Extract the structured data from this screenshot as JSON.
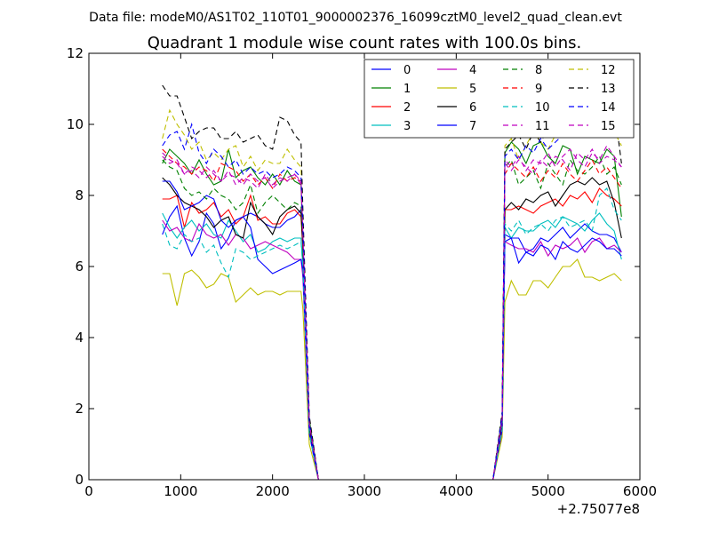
{
  "chart_data": {
    "type": "line",
    "suptitle": "Data file: modeM0/AS1T02_110T01_9000002376_16099cztM0_level2_quad_clean.evt",
    "title": "Quadrant 1 module wise count rates with 100.0s bins.",
    "xlabel": "",
    "ylabel": "",
    "x_offset_label": "+2.75077e8",
    "xlim": [
      0,
      6000
    ],
    "ylim": [
      0,
      12
    ],
    "x_ticks": [
      0,
      1000,
      2000,
      3000,
      4000,
      5000,
      6000
    ],
    "y_ticks": [
      0,
      2,
      4,
      6,
      8,
      10,
      12
    ],
    "grid": false,
    "legend_position": "top-right",
    "legend_columns": 4,
    "x": [
      800,
      880,
      960,
      1040,
      1120,
      1200,
      1280,
      1360,
      1440,
      1520,
      1600,
      1680,
      1760,
      1840,
      1920,
      2000,
      2080,
      2160,
      2240,
      2310,
      2330,
      2400,
      2500,
      4400,
      4500,
      4530,
      4600,
      4680,
      4760,
      4840,
      4920,
      5000,
      5080,
      5160,
      5240,
      5320,
      5400,
      5480,
      5560,
      5640,
      5720,
      5800
    ],
    "series": [
      {
        "name": "0",
        "color": "#0000ff",
        "style": "solid",
        "values": [
          6.9,
          7.4,
          7.7,
          6.8,
          6.3,
          6.7,
          7.5,
          7.2,
          6.5,
          6.8,
          7.3,
          7.4,
          7.5,
          7.4,
          7.2,
          7.1,
          7.1,
          7.3,
          7.4,
          7.6,
          6.6,
          1.5,
          0,
          0,
          1.6,
          6.9,
          6.8,
          6.8,
          6.4,
          6.5,
          6.8,
          6.7,
          6.9,
          7.1,
          6.8,
          7.0,
          7.2,
          7.0,
          6.9,
          6.9,
          6.8,
          6.4
        ]
      },
      {
        "name": "1",
        "color": "#008000",
        "style": "solid",
        "values": [
          8.9,
          9.3,
          9.1,
          8.9,
          8.6,
          9.0,
          8.6,
          8.3,
          8.4,
          9.3,
          8.5,
          8.7,
          8.8,
          8.5,
          8.3,
          8.6,
          8.3,
          8.7,
          8.4,
          8.3,
          6.6,
          1.7,
          0,
          0,
          1.8,
          9.2,
          9.5,
          9.3,
          8.9,
          9.4,
          9.5,
          9.1,
          8.9,
          9.4,
          9.3,
          8.6,
          9.1,
          9.0,
          8.9,
          9.3,
          9.1,
          7.4
        ]
      },
      {
        "name": "2",
        "color": "#ff0000",
        "style": "solid",
        "values": [
          7.9,
          7.9,
          8.0,
          7.1,
          7.8,
          7.5,
          7.6,
          7.8,
          7.4,
          7.6,
          7.2,
          7.4,
          8.0,
          7.3,
          7.4,
          7.2,
          7.2,
          7.5,
          7.6,
          7.4,
          6.5,
          1.4,
          0,
          0,
          1.5,
          7.6,
          7.6,
          7.7,
          7.6,
          7.5,
          7.7,
          7.8,
          7.9,
          7.7,
          8.0,
          7.9,
          8.1,
          7.8,
          8.2,
          8.0,
          7.9,
          7.7
        ]
      },
      {
        "name": "3",
        "color": "#00bfbf",
        "style": "solid",
        "values": [
          7.5,
          7.1,
          6.8,
          7.1,
          7.3,
          7.0,
          7.2,
          6.9,
          6.8,
          7.3,
          7.0,
          6.7,
          6.9,
          6.4,
          6.5,
          6.7,
          6.8,
          6.7,
          6.8,
          6.8,
          6.0,
          1.3,
          0,
          0,
          1.4,
          7.1,
          6.8,
          7.1,
          7.0,
          7.0,
          7.2,
          7.3,
          7.1,
          7.4,
          7.3,
          7.2,
          7.0,
          7.3,
          7.5,
          7.2,
          7.0,
          6.2
        ]
      },
      {
        "name": "4",
        "color": "#bf00bf",
        "style": "solid",
        "values": [
          7.3,
          7.0,
          7.1,
          6.8,
          6.7,
          7.2,
          6.9,
          6.8,
          6.9,
          6.6,
          6.9,
          6.8,
          6.5,
          6.6,
          6.7,
          6.6,
          6.5,
          6.4,
          6.2,
          6.2,
          5.7,
          1.3,
          0,
          0,
          1.3,
          6.7,
          6.6,
          6.5,
          6.5,
          6.4,
          6.7,
          6.3,
          6.6,
          6.5,
          6.6,
          6.8,
          6.4,
          6.7,
          6.8,
          6.5,
          6.6,
          6.4
        ]
      },
      {
        "name": "5",
        "color": "#bfbf00",
        "style": "solid",
        "values": [
          5.8,
          5.8,
          4.9,
          5.8,
          5.9,
          5.7,
          5.4,
          5.5,
          5.8,
          5.7,
          5.0,
          5.2,
          5.4,
          5.2,
          5.3,
          5.3,
          5.2,
          5.3,
          5.3,
          5.3,
          4.8,
          1.0,
          0,
          0,
          1.2,
          5.0,
          5.6,
          5.2,
          5.2,
          5.6,
          5.6,
          5.4,
          5.7,
          6.0,
          6.0,
          6.2,
          5.7,
          5.7,
          5.6,
          5.7,
          5.8,
          5.6
        ]
      },
      {
        "name": "6",
        "color": "#000000",
        "style": "solid",
        "values": [
          8.5,
          8.3,
          8.0,
          7.8,
          7.7,
          7.6,
          7.4,
          7.1,
          7.3,
          7.4,
          6.9,
          6.8,
          7.8,
          7.4,
          7.2,
          6.9,
          7.4,
          7.6,
          7.7,
          7.5,
          6.6,
          1.5,
          0,
          0,
          1.6,
          7.6,
          7.8,
          7.6,
          7.9,
          7.8,
          8.0,
          8.1,
          7.7,
          8.0,
          8.3,
          8.4,
          8.3,
          8.5,
          8.3,
          8.4,
          7.8,
          6.8
        ]
      },
      {
        "name": "7",
        "color": "#0000ff",
        "style": "solid",
        "values": [
          8.4,
          8.4,
          8.1,
          7.6,
          7.7,
          7.8,
          8.0,
          7.9,
          7.3,
          7.1,
          7.3,
          7.4,
          7.1,
          6.2,
          6.0,
          5.8,
          5.9,
          6.0,
          6.1,
          6.2,
          5.9,
          1.3,
          0,
          0,
          1.4,
          6.7,
          6.8,
          6.1,
          6.4,
          6.3,
          6.6,
          6.5,
          6.2,
          6.7,
          6.5,
          6.4,
          6.6,
          6.8,
          6.7,
          6.5,
          6.5,
          6.3
        ]
      },
      {
        "name": "8",
        "color": "#008000",
        "style": "dashed",
        "values": [
          9.0,
          8.8,
          8.7,
          8.2,
          8.0,
          8.1,
          7.9,
          8.2,
          8.0,
          7.9,
          7.6,
          7.8,
          8.3,
          7.5,
          7.8,
          8.0,
          7.8,
          7.6,
          7.8,
          7.7,
          6.8,
          1.6,
          0,
          0,
          1.7,
          8.8,
          9.0,
          8.3,
          8.5,
          8.7,
          8.2,
          8.9,
          8.6,
          8.3,
          9.0,
          8.7,
          8.6,
          8.8,
          9.1,
          8.6,
          8.8,
          8.3
        ]
      },
      {
        "name": "9",
        "color": "#ff0000",
        "style": "dashed",
        "values": [
          9.3,
          9.1,
          8.9,
          8.8,
          8.6,
          8.8,
          8.7,
          8.4,
          8.9,
          8.8,
          8.7,
          8.4,
          8.6,
          8.3,
          8.5,
          8.2,
          8.6,
          8.4,
          8.5,
          8.4,
          7.0,
          1.6,
          0,
          0,
          1.7,
          8.6,
          8.9,
          8.7,
          8.5,
          8.8,
          8.4,
          8.7,
          8.5,
          8.9,
          8.6,
          8.4,
          8.7,
          9.0,
          8.6,
          8.8,
          8.5,
          8.2
        ]
      },
      {
        "name": "10",
        "color": "#00bfbf",
        "style": "dashed",
        "values": [
          7.2,
          6.6,
          6.5,
          6.9,
          6.7,
          6.8,
          6.4,
          6.6,
          6.1,
          5.7,
          6.5,
          6.4,
          6.2,
          6.3,
          6.4,
          6.5,
          6.6,
          6.5,
          6.6,
          6.7,
          6.0,
          1.3,
          0,
          0,
          1.4,
          7.2,
          7.0,
          7.3,
          6.9,
          7.1,
          7.2,
          7.0,
          7.3,
          7.4,
          7.1,
          7.2,
          7.3,
          7.0,
          8.0,
          8.2,
          7.6,
          7.3
        ]
      },
      {
        "name": "11",
        "color": "#bf00bf",
        "style": "dashed",
        "values": [
          9.2,
          9.0,
          8.9,
          8.6,
          8.7,
          8.5,
          8.8,
          8.6,
          8.4,
          8.7,
          8.3,
          8.5,
          8.4,
          8.2,
          8.6,
          8.3,
          8.5,
          8.4,
          8.6,
          8.3,
          7.0,
          1.6,
          0,
          0,
          1.7,
          9.0,
          8.8,
          9.1,
          8.7,
          9.0,
          8.9,
          9.2,
          8.8,
          9.1,
          9.3,
          9.0,
          8.8,
          9.2,
          9.0,
          9.4,
          9.1,
          8.8
        ]
      },
      {
        "name": "12",
        "color": "#bfbf00",
        "style": "dashed",
        "values": [
          9.6,
          10.4,
          10.0,
          9.7,
          9.3,
          9.5,
          9.0,
          9.2,
          9.0,
          9.3,
          9.4,
          8.8,
          9.1,
          8.7,
          9.0,
          8.9,
          8.9,
          9.3,
          9.0,
          8.8,
          7.2,
          1.7,
          0,
          0,
          1.8,
          9.4,
          9.6,
          9.0,
          9.4,
          9.8,
          9.5,
          9.3,
          9.7,
          9.9,
          10.3,
          10.8,
          10.2,
          10.5,
          10.9,
          10.4,
          9.8,
          9.4
        ]
      },
      {
        "name": "13",
        "color": "#000000",
        "style": "dashed",
        "values": [
          11.1,
          10.8,
          10.8,
          10.2,
          9.6,
          9.8,
          9.9,
          9.9,
          9.6,
          9.6,
          9.8,
          9.5,
          9.6,
          9.7,
          9.4,
          9.3,
          10.2,
          10.1,
          9.7,
          9.5,
          7.6,
          1.8,
          0,
          0,
          1.9,
          9.3,
          9.5,
          9.7,
          9.3,
          9.8,
          9.5,
          9.9,
          9.7,
          10.1,
          9.8,
          10.6,
          10.8,
          10.3,
          10.7,
          10.9,
          10.5,
          8.9
        ]
      },
      {
        "name": "14",
        "color": "#0000ff",
        "style": "dashed",
        "values": [
          9.4,
          9.7,
          9.8,
          9.3,
          10.0,
          9.2,
          8.9,
          9.3,
          9.1,
          8.8,
          9.0,
          8.6,
          8.8,
          8.6,
          8.7,
          8.5,
          8.6,
          8.8,
          8.7,
          8.5,
          7.1,
          1.6,
          0,
          0,
          1.8,
          9.1,
          9.3,
          9.0,
          9.4,
          9.2,
          9.6,
          9.3,
          9.5,
          9.7,
          9.9,
          10.0,
          10.2,
          10.1,
          10.6,
          10.8,
          10.3,
          9.6
        ]
      },
      {
        "name": "15",
        "color": "#bf00bf",
        "style": "dashed",
        "values": [
          9.1,
          8.9,
          9.0,
          8.6,
          8.8,
          8.7,
          8.5,
          8.7,
          8.4,
          8.6,
          8.5,
          8.3,
          8.6,
          8.4,
          8.5,
          8.2,
          8.4,
          8.5,
          8.6,
          8.4,
          6.9,
          1.6,
          0,
          0,
          1.7,
          8.9,
          8.7,
          9.0,
          8.8,
          8.6,
          9.0,
          8.8,
          9.1,
          9.0,
          8.7,
          9.2,
          9.0,
          9.3,
          8.9,
          9.1,
          9.0,
          8.8
        ]
      }
    ]
  }
}
